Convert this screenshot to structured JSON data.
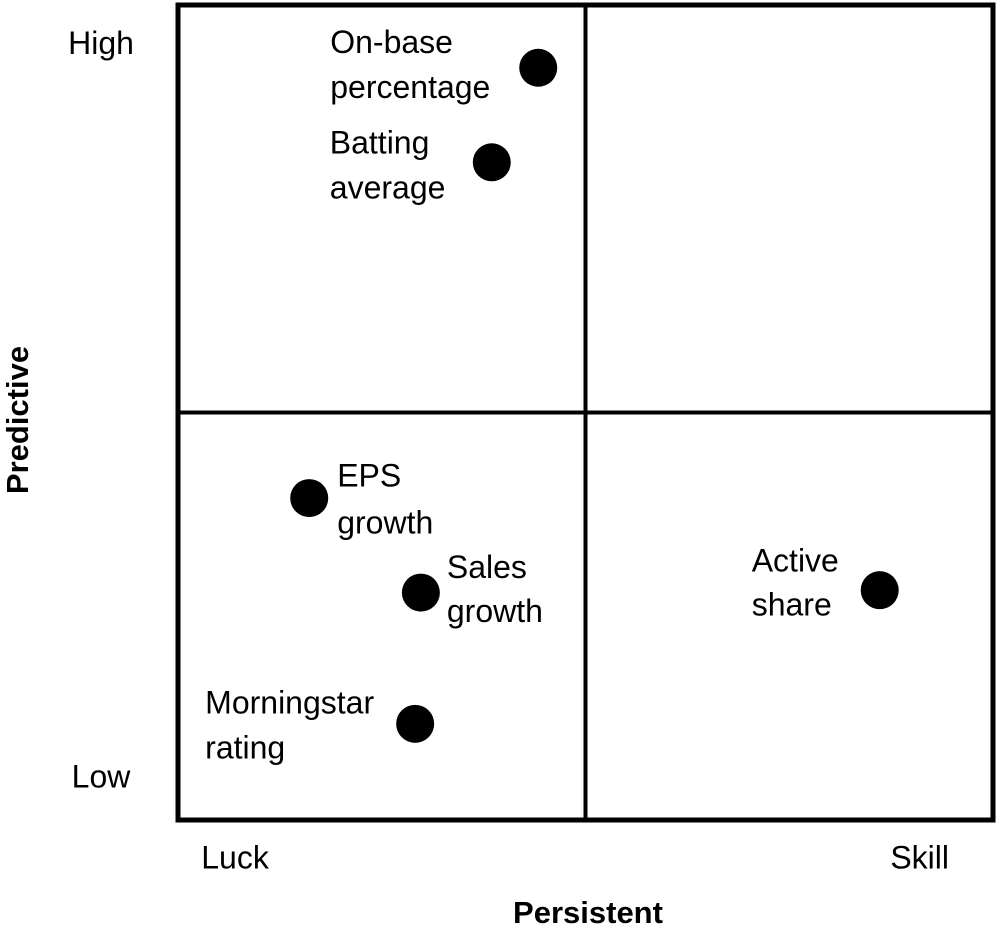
{
  "chart_data": {
    "type": "scatter",
    "xlabel": "Persistent",
    "ylabel": "Predictive",
    "xlim": [
      0,
      10
    ],
    "ylim": [
      0,
      10
    ],
    "xticks": [
      {
        "value": 0.7,
        "label": "Luck"
      },
      {
        "value": 9.1,
        "label": "Skill"
      }
    ],
    "yticks": [
      {
        "value": 0.5,
        "label": "Low"
      },
      {
        "value": 9.5,
        "label": "High"
      }
    ],
    "color": "#000000",
    "x": [
      4.42,
      3.85,
      1.61,
      2.98,
      2.91,
      8.61
    ],
    "y": [
      9.23,
      8.07,
      3.95,
      2.79,
      1.18,
      2.82
    ],
    "point_labels": [
      [
        "On-base",
        "percentage"
      ],
      [
        "Batting",
        "average"
      ],
      [
        "EPS",
        "growth"
      ],
      [
        "Sales",
        "growth"
      ],
      [
        "Morningstar",
        "rating"
      ],
      [
        "Active",
        "share"
      ]
    ]
  }
}
